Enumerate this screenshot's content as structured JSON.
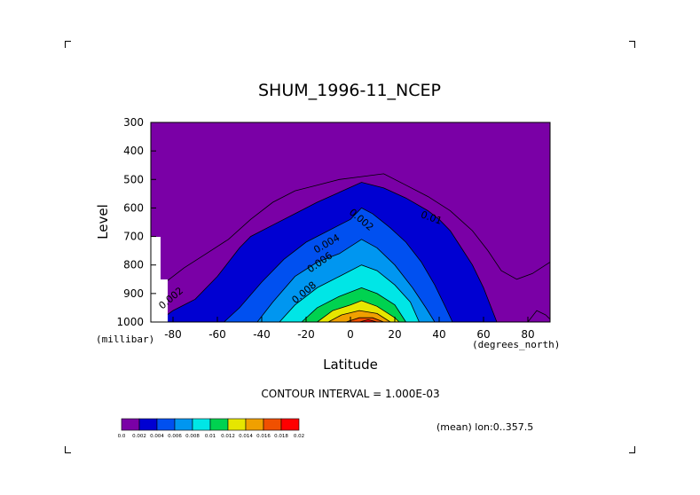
{
  "chart_data": {
    "type": "heatmap",
    "title": "SHUM_1996-11_NCEP",
    "xlabel": "Latitude",
    "ylabel": "Level",
    "x_units": "(degrees_north)",
    "y_units": "(millibar)",
    "xlim": [
      -90,
      90
    ],
    "ylim": [
      1000,
      300
    ],
    "x_ticks": [
      "-80",
      "-60",
      "-40",
      "-20",
      "0",
      "20",
      "40",
      "60",
      "80"
    ],
    "y_ticks": [
      "300",
      "400",
      "500",
      "600",
      "700",
      "800",
      "900",
      "1000"
    ],
    "contour_interval_text": "CONTOUR INTERVAL = 1.000E-03",
    "subset_text": "(mean) lon:0..357.5",
    "contour_labels": [
      "0.002",
      "0.004",
      "0.006",
      "0.008",
      "0.01",
      "0.002",
      "0.002"
    ],
    "colorbar": {
      "labels": [
        "0.0",
        "0.002",
        "0.004",
        "0.006",
        "0.008",
        "0.01",
        "0.012",
        "0.014",
        "0.016",
        "0.018",
        "0.02"
      ],
      "colors": [
        "#7a00a6",
        "#0000d2",
        "#0050f0",
        "#0096f0",
        "#00e6e6",
        "#00d250",
        "#e6e600",
        "#f0a000",
        "#f05000",
        "#ff0000"
      ]
    },
    "legend": "bottom-left",
    "grid": false
  }
}
